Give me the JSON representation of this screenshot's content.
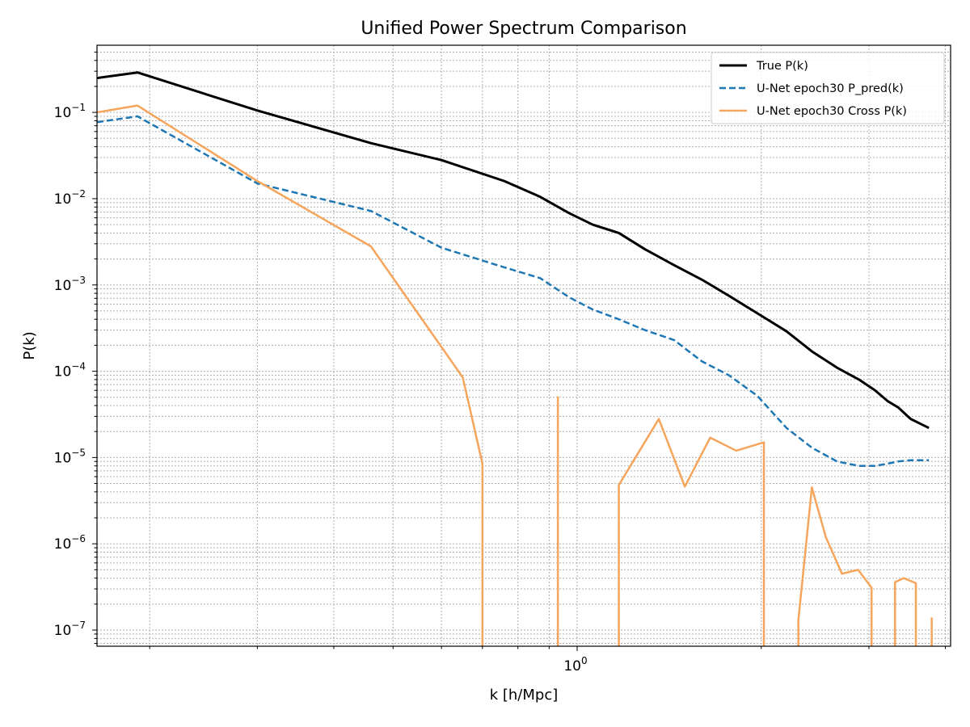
{
  "chart_data": {
    "type": "line",
    "title": "Unified Power Spectrum Comparison",
    "xlabel": "k [h/Mpc]",
    "ylabel": "P(k)",
    "xscale": "log",
    "yscale": "log",
    "xlim": [
      0.164,
      4.08
    ],
    "ylim": [
      6.5e-08,
      0.6
    ],
    "x_major_ticks": [
      1.0
    ],
    "x_major_tick_labels": [
      "10^0"
    ],
    "y_major_ticks": [
      1e-07,
      1e-06,
      1e-05,
      0.0001,
      0.001,
      0.01,
      0.1
    ],
    "y_major_tick_labels": [
      "10^-7",
      "10^-6",
      "10^-5",
      "10^-4",
      "10^-3",
      "10^-2",
      "10^-1"
    ],
    "grid": "both (major and minor), dotted",
    "legend": "top-right",
    "series": [
      {
        "name": "True P(k)",
        "color": "#000000",
        "style": "solid",
        "width": 3,
        "x": [
          0.164,
          0.191,
          0.3,
          0.46,
          0.6,
          0.76,
          0.87,
          0.97,
          1.06,
          1.17,
          1.29,
          1.44,
          1.6,
          1.77,
          1.97,
          2.2,
          2.42,
          2.66,
          2.89,
          3.07,
          3.22,
          3.35,
          3.51,
          3.76
        ],
        "y": [
          0.25,
          0.29,
          0.105,
          0.044,
          0.028,
          0.016,
          0.0105,
          0.0068,
          0.005,
          0.004,
          0.0026,
          0.0017,
          0.00115,
          0.00075,
          0.00047,
          0.00029,
          0.00017,
          0.00011,
          8e-05,
          6e-05,
          4.5e-05,
          3.8e-05,
          2.8e-05,
          2.2e-05
        ]
      },
      {
        "name": "U-Net epoch30 P_pred(k)",
        "color": "#1f77b4",
        "style": "dashed",
        "width": 2.5,
        "x": [
          0.164,
          0.191,
          0.3,
          0.46,
          0.6,
          0.76,
          0.87,
          0.97,
          1.06,
          1.17,
          1.29,
          1.44,
          1.6,
          1.77,
          1.97,
          2.2,
          2.42,
          2.66,
          2.89,
          3.07,
          3.22,
          3.35,
          3.51,
          3.76
        ],
        "y": [
          0.077,
          0.09,
          0.015,
          0.0072,
          0.0027,
          0.0016,
          0.0012,
          0.00072,
          0.00052,
          0.0004,
          0.0003,
          0.00023,
          0.00013,
          9e-05,
          5.2e-05,
          2.2e-05,
          1.3e-05,
          9e-06,
          8e-06,
          8e-06,
          8.5e-06,
          9e-06,
          9.3e-06,
          9.3e-06
        ]
      },
      {
        "name": "U-Net epoch30 Cross P(k)",
        "color": "#f6a55c",
        "style": "solid",
        "width": 2.5,
        "segments": [
          {
            "x": [
              0.164,
              0.191,
              0.3,
              0.46,
              0.65,
              0.7,
              0.7
            ],
            "y": [
              0.1,
              0.12,
              0.016,
              0.0028,
              8.5e-05,
              8.5e-06,
              6.5e-08
            ]
          },
          {
            "x": [
              0.93,
              0.93
            ],
            "y": [
              6.5e-08,
              5.1e-05
            ]
          },
          {
            "x": [
              1.17,
              1.17,
              1.36,
              1.5,
              1.65,
              1.82,
              2.02,
              2.02
            ],
            "y": [
              6.5e-08,
              4.8e-06,
              2.8e-05,
              4.6e-06,
              1.7e-05,
              1.2e-05,
              1.5e-05,
              6.5e-08
            ]
          },
          {
            "x": [
              2.3,
              2.3,
              2.42,
              2.55,
              2.71,
              2.88,
              3.03,
              3.03
            ],
            "y": [
              6.5e-08,
              1.3e-07,
              4.5e-06,
              1.2e-06,
              4.5e-07,
              5e-07,
              3.1e-07,
              6.5e-08
            ]
          },
          {
            "x": [
              3.31,
              3.31,
              3.42,
              3.58,
              3.58
            ],
            "y": [
              6.5e-08,
              3.6e-07,
              4e-07,
              3.5e-07,
              6.5e-08
            ]
          },
          {
            "x": [
              3.8,
              3.8
            ],
            "y": [
              6.5e-08,
              1.4e-07
            ]
          }
        ]
      }
    ]
  }
}
